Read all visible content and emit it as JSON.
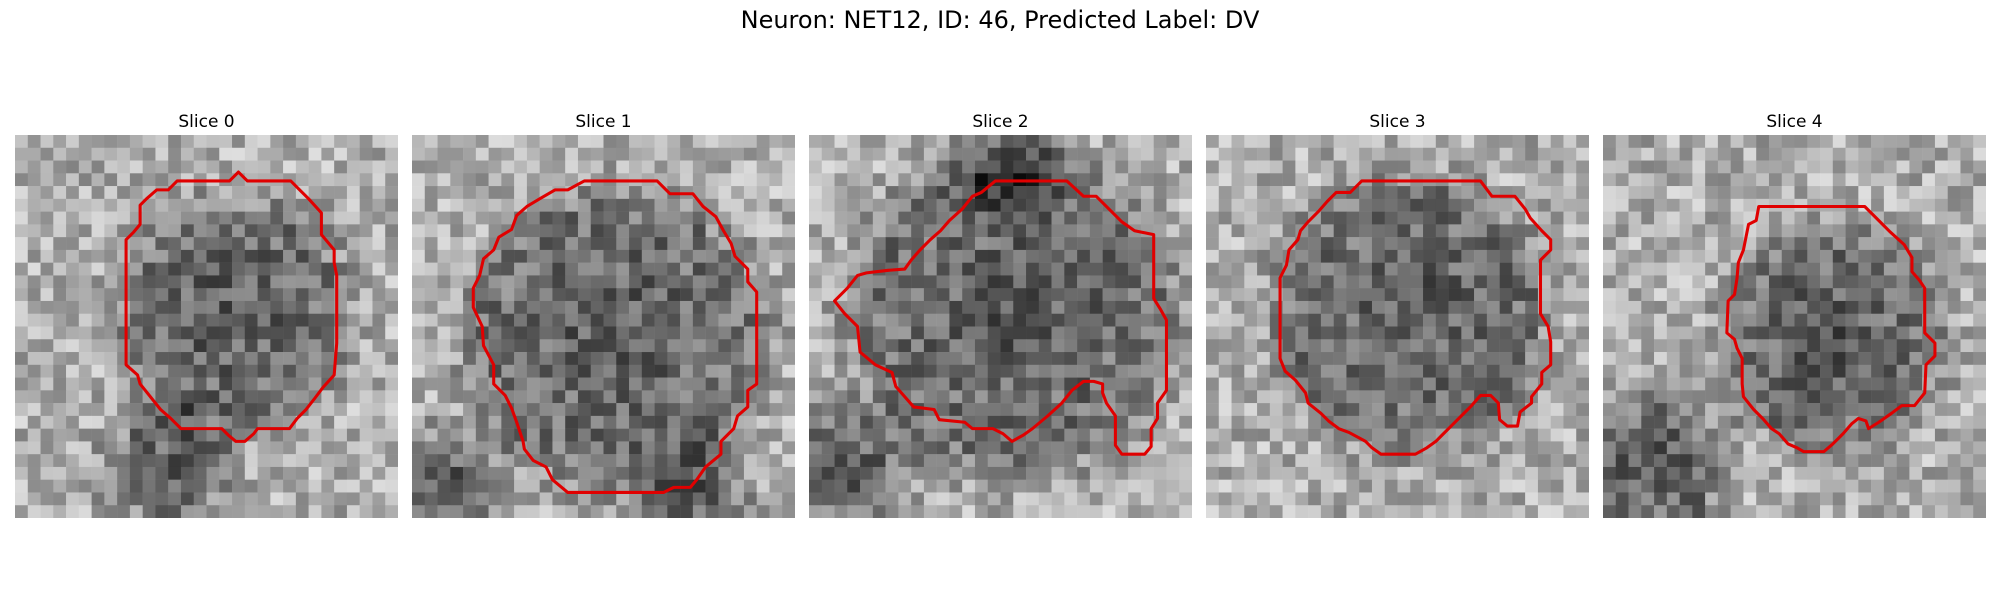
{
  "figure": {
    "title": "Neuron: NET12, ID: 46, Predicted Label: DV"
  },
  "panels": [
    {
      "title": "Slice 0"
    },
    {
      "title": "Slice 1"
    },
    {
      "title": "Slice 2"
    },
    {
      "title": "Slice 3"
    },
    {
      "title": "Slice 4"
    }
  ],
  "colors": {
    "contour": "#e00000",
    "background": "#ffffff"
  }
}
